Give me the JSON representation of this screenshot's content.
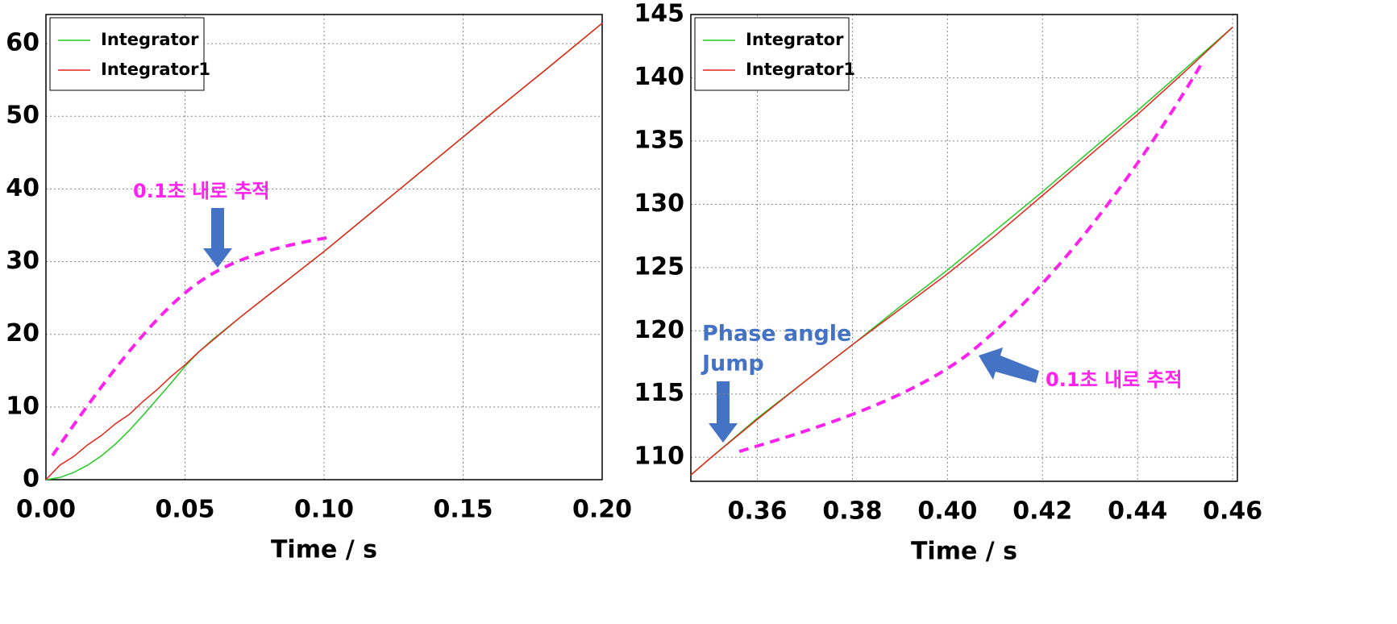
{
  "chart_data": [
    {
      "type": "line",
      "xlabel": "Time / s",
      "x": [
        0,
        0.005,
        0.01,
        0.015,
        0.02,
        0.025,
        0.03,
        0.035,
        0.04,
        0.045,
        0.05,
        0.055,
        0.06,
        0.07,
        0.08,
        0.09,
        0.1,
        0.12,
        0.14,
        0.16,
        0.18,
        0.2
      ],
      "series": [
        {
          "name": "Integrator",
          "color": "#22cc22",
          "values": [
            0,
            0.3,
            1.0,
            2.0,
            3.3,
            4.9,
            6.8,
            8.9,
            11.1,
            13.3,
            15.6,
            17.6,
            19.3,
            22.4,
            25.4,
            28.4,
            31.4,
            37.7,
            44.0,
            50.3,
            56.5,
            62.8
          ]
        },
        {
          "name": "Integrator1",
          "color": "#e8231a",
          "values": [
            0,
            2.0,
            3.2,
            4.8,
            6.1,
            7.7,
            9.0,
            10.8,
            12.4,
            14.2,
            15.8,
            17.6,
            19.2,
            22.4,
            25.4,
            28.4,
            31.4,
            37.7,
            44.0,
            50.3,
            56.5,
            62.8
          ]
        }
      ],
      "xlim": [
        0,
        0.2
      ],
      "ylim": [
        0,
        64
      ],
      "xticks": [
        {
          "value": 0,
          "label": "0.00"
        },
        0.05,
        {
          "value": 0.1,
          "label": "0.10"
        },
        0.15,
        {
          "value": 0.2,
          "label": "0.20"
        }
      ],
      "yticks": [
        0,
        10,
        20,
        30,
        40,
        50,
        60
      ],
      "grid": true,
      "legend": "upper left",
      "annotations": [
        {
          "lines": [
            "0.1초 내로 추적"
          ]
        }
      ]
    },
    {
      "type": "line",
      "xlabel": "Time / s",
      "x": [
        0.346,
        0.35,
        0.36,
        0.37,
        0.38,
        0.39,
        0.4,
        0.41,
        0.42,
        0.43,
        0.44,
        0.45,
        0.46
      ],
      "series": [
        {
          "name": "Integrator",
          "color": "#22cc22",
          "values": [
            108.6,
            109.9,
            113.1,
            116.0,
            118.9,
            121.9,
            124.8,
            127.9,
            131.0,
            134.2,
            137.4,
            140.7,
            144.0
          ]
        },
        {
          "name": "Integrator1",
          "color": "#e8231a",
          "values": [
            108.6,
            109.9,
            113.0,
            116.0,
            118.9,
            121.7,
            124.5,
            127.5,
            130.7,
            133.9,
            137.1,
            140.5,
            144.0
          ]
        }
      ],
      "xlim": [
        0.346,
        0.461
      ],
      "ylim": [
        108.1,
        145
      ],
      "xticks": [
        0.36,
        0.38,
        {
          "value": 0.4,
          "label": "0.40"
        },
        0.42,
        0.44,
        0.46
      ],
      "yticks": [
        110,
        115,
        120,
        125,
        130,
        135,
        140,
        145
      ],
      "grid": true,
      "legend": "upper left",
      "annotations": [
        {
          "lines": [
            "Phase angle",
            "Jump"
          ]
        },
        {
          "lines": [
            "0.1초 내로 추적"
          ]
        }
      ]
    }
  ]
}
